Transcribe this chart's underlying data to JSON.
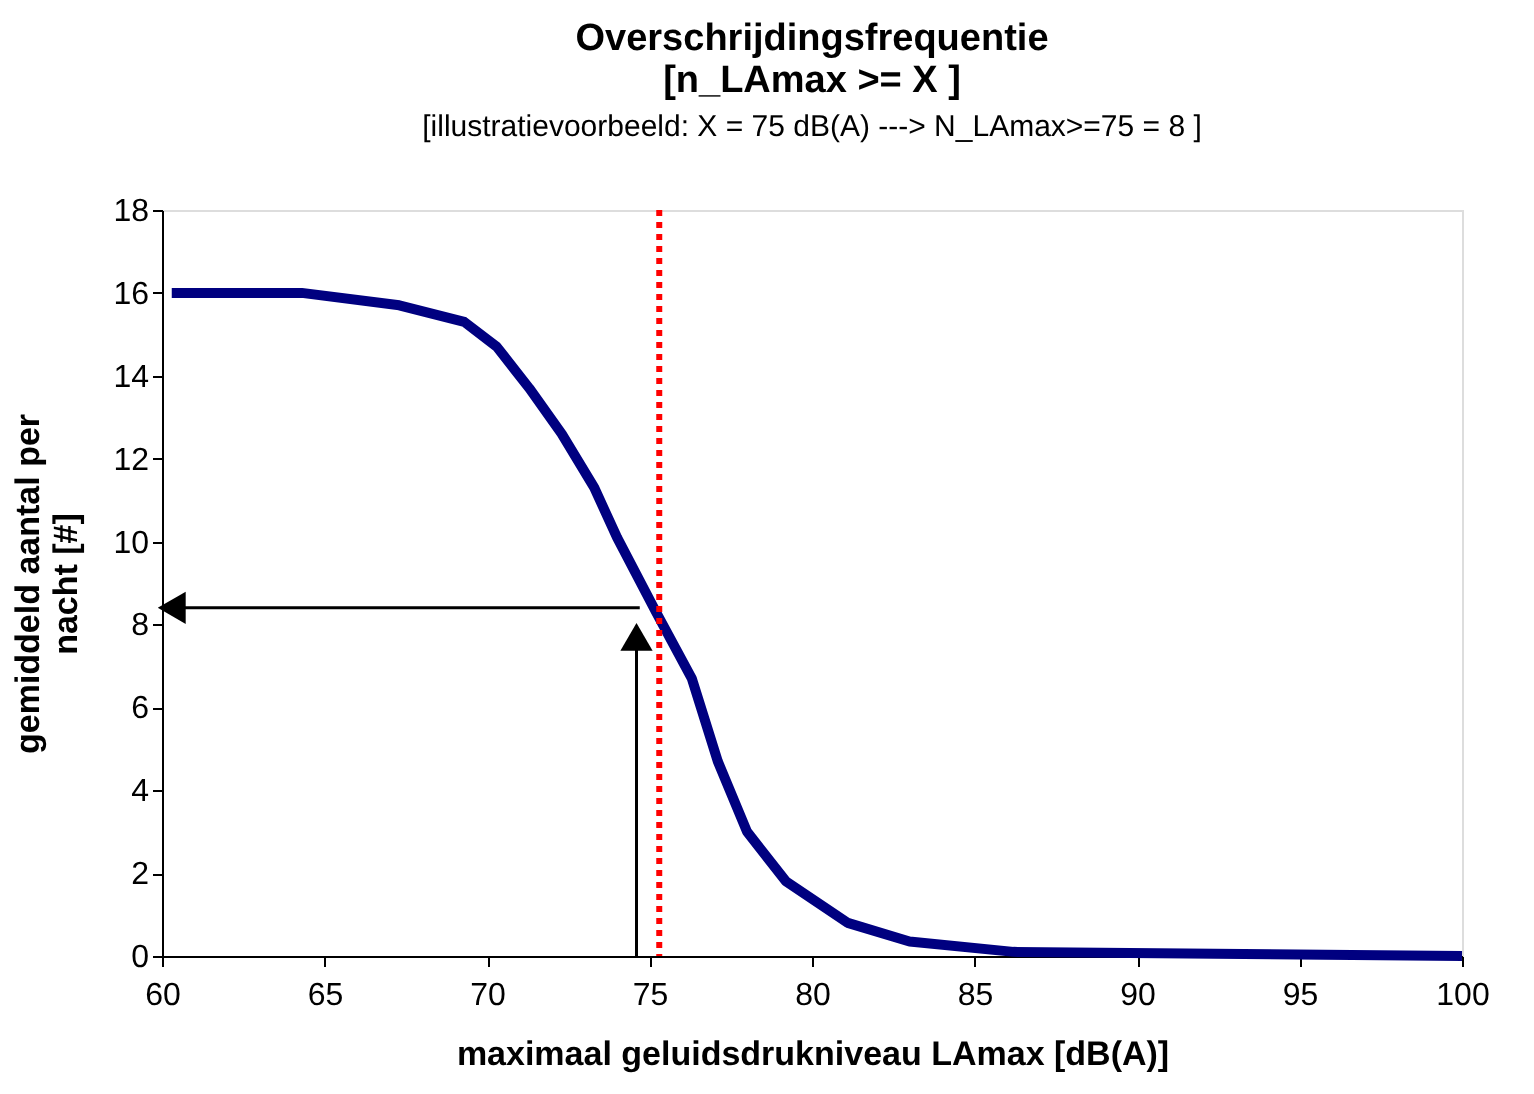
{
  "chart_data": {
    "type": "line",
    "title": "Overschrijdingsfrequentie\n[n_LAmax >= X ]",
    "subtitle": "[illustratievoorbeeld:  X = 75 dB(A)  ---> N_LAmax>=75  =  8 ]",
    "xlabel": "maximaal geluidsdrukniveau LAmax  [dB(A)]",
    "ylabel": "gemiddeld aantal per\nnacht  [#]",
    "x": [
      60.3,
      64.3,
      67.3,
      69.3,
      70.3,
      71.3,
      72.3,
      73.3,
      74.0,
      75.2,
      76.3,
      77.1,
      78.0,
      79.2,
      81.1,
      83.0,
      86.2,
      100
    ],
    "series": [
      {
        "color": "#000080",
        "values": [
          16,
          16,
          15.7,
          15.3,
          14.7,
          13.7,
          12.6,
          11.3,
          10.1,
          8.3,
          6.7,
          4.7,
          3.0,
          1.8,
          0.8,
          0.35,
          0.1,
          0
        ]
      }
    ],
    "xlim": [
      60,
      100
    ],
    "xticks": [
      60,
      65,
      70,
      75,
      80,
      85,
      90,
      95,
      100
    ],
    "ylim": [
      0,
      18
    ],
    "yticks": [
      0,
      2,
      4,
      6,
      8,
      10,
      12,
      14,
      16,
      18
    ],
    "ref_lines": [
      {
        "axis": "x",
        "value": 75.3,
        "label": null,
        "color": "#ff0000",
        "line_style": "dotted"
      }
    ],
    "grid": false,
    "marker": "none",
    "line_style": "solid"
  }
}
